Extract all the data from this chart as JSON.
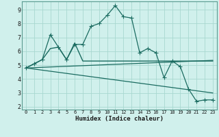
{
  "xlabel": "Humidex (Indice chaleur)",
  "bg_color": "#d0f0ec",
  "grid_color": "#a8d8d0",
  "line_color": "#1a6b60",
  "xlim": [
    -0.5,
    23.5
  ],
  "ylim": [
    1.8,
    9.6
  ],
  "yticks": [
    2,
    3,
    4,
    5,
    6,
    7,
    8,
    9
  ],
  "xticks": [
    0,
    1,
    2,
    3,
    4,
    5,
    6,
    7,
    8,
    9,
    10,
    11,
    12,
    13,
    14,
    15,
    16,
    17,
    18,
    19,
    20,
    21,
    22,
    23
  ],
  "series1_x": [
    0,
    1,
    2,
    3,
    4,
    5,
    6,
    7,
    8,
    9,
    10,
    11,
    12,
    13,
    14,
    15,
    16,
    17,
    18,
    19,
    20,
    21,
    22,
    23
  ],
  "series1_y": [
    4.8,
    5.1,
    5.4,
    7.2,
    6.3,
    5.4,
    6.5,
    6.5,
    7.8,
    8.0,
    8.6,
    9.3,
    8.5,
    8.4,
    5.9,
    6.2,
    5.9,
    4.1,
    5.3,
    4.9,
    3.3,
    2.4,
    2.5,
    2.5
  ],
  "series2_x": [
    0,
    1,
    2,
    3,
    4,
    5,
    6,
    7,
    8,
    9,
    10,
    11,
    12,
    13,
    14,
    15,
    16,
    17,
    18,
    19,
    20,
    21,
    22,
    23
  ],
  "series2_y": [
    4.8,
    5.1,
    5.4,
    6.2,
    6.3,
    5.4,
    6.6,
    5.3,
    5.3,
    5.3,
    5.3,
    5.3,
    5.3,
    5.3,
    5.3,
    5.3,
    5.3,
    5.3,
    5.3,
    5.3,
    5.3,
    5.3,
    5.3,
    5.3
  ],
  "series3_x": [
    0,
    23
  ],
  "series3_y": [
    4.8,
    5.35
  ],
  "series4_x": [
    0,
    23
  ],
  "series4_y": [
    4.8,
    3.0
  ]
}
